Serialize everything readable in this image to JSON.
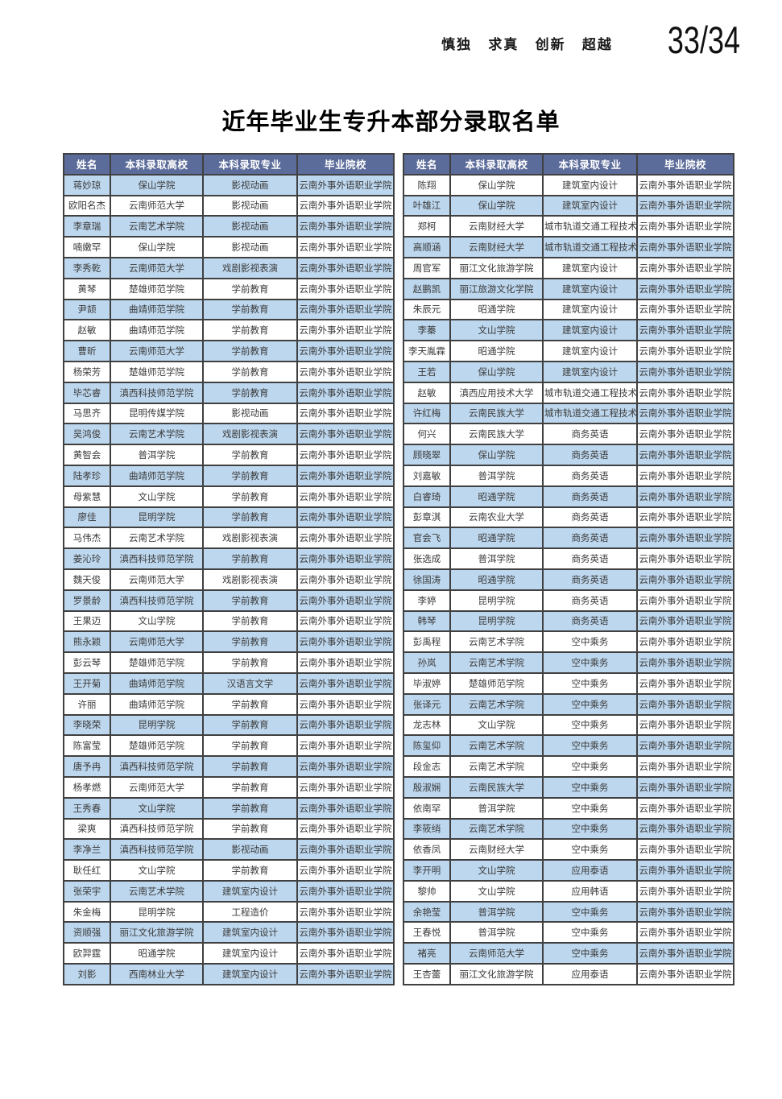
{
  "header": {
    "motto": "慎独 求真 创新 超越",
    "page_number": "33/34"
  },
  "title": "近年毕业生专升本部分录取名单",
  "colors": {
    "header_bg": "#5c6c9a",
    "header_text": "#ffffff",
    "row_alt_bg": "#bdd7ee",
    "row_bg": "#ffffff",
    "border": "#404040",
    "cell_text": "#3b3b3b"
  },
  "tables": [
    {
      "side": "left",
      "headers": [
        "姓名",
        "本科录取高校",
        "本科录取专业",
        "毕业院校"
      ],
      "rows": [
        [
          "蒋妙琼",
          "保山学院",
          "影视动画",
          "云南外事外语职业学院"
        ],
        [
          "欧阳名杰",
          "云南师范大学",
          "影视动画",
          "云南外事外语职业学院"
        ],
        [
          "李章瑞",
          "云南艺术学院",
          "影视动画",
          "云南外事外语职业学院"
        ],
        [
          "喃嫩罕",
          "保山学院",
          "影视动画",
          "云南外事外语职业学院"
        ],
        [
          "李秀乾",
          "云南师范大学",
          "戏剧影视表演",
          "云南外事外语职业学院"
        ],
        [
          "黄琴",
          "楚雄师范学院",
          "学前教育",
          "云南外事外语职业学院"
        ],
        [
          "尹颉",
          "曲靖师范学院",
          "学前教育",
          "云南外事外语职业学院"
        ],
        [
          "赵敏",
          "曲靖师范学院",
          "学前教育",
          "云南外事外语职业学院"
        ],
        [
          "曹昕",
          "云南师范大学",
          "学前教育",
          "云南外事外语职业学院"
        ],
        [
          "杨荣芳",
          "楚雄师范学院",
          "学前教育",
          "云南外事外语职业学院"
        ],
        [
          "毕芯睿",
          "滇西科技师范学院",
          "学前教育",
          "云南外事外语职业学院"
        ],
        [
          "马思齐",
          "昆明传媒学院",
          "影视动画",
          "云南外事外语职业学院"
        ],
        [
          "吴鸿俊",
          "云南艺术学院",
          "戏剧影视表演",
          "云南外事外语职业学院"
        ],
        [
          "黄智会",
          "普洱学院",
          "学前教育",
          "云南外事外语职业学院"
        ],
        [
          "陆孝珍",
          "曲靖师范学院",
          "学前教育",
          "云南外事外语职业学院"
        ],
        [
          "母紫慧",
          "文山学院",
          "学前教育",
          "云南外事外语职业学院"
        ],
        [
          "廖佳",
          "昆明学院",
          "学前教育",
          "云南外事外语职业学院"
        ],
        [
          "马伟杰",
          "云南艺术学院",
          "戏剧影视表演",
          "云南外事外语职业学院"
        ],
        [
          "姜沁玲",
          "滇西科技师范学院",
          "学前教育",
          "云南外事外语职业学院"
        ],
        [
          "魏天俊",
          "云南师范大学",
          "戏剧影视表演",
          "云南外事外语职业学院"
        ],
        [
          "罗景龄",
          "滇西科技师范学院",
          "学前教育",
          "云南外事外语职业学院"
        ],
        [
          "王果迈",
          "文山学院",
          "学前教育",
          "云南外事外语职业学院"
        ],
        [
          "熊永颖",
          "云南师范大学",
          "学前教育",
          "云南外事外语职业学院"
        ],
        [
          "彭云琴",
          "楚雄师范学院",
          "学前教育",
          "云南外事外语职业学院"
        ],
        [
          "王开菊",
          "曲靖师范学院",
          "汉语言文学",
          "云南外事外语职业学院"
        ],
        [
          "许丽",
          "曲靖师范学院",
          "学前教育",
          "云南外事外语职业学院"
        ],
        [
          "李晓荣",
          "昆明学院",
          "学前教育",
          "云南外事外语职业学院"
        ],
        [
          "陈富莹",
          "楚雄师范学院",
          "学前教育",
          "云南外事外语职业学院"
        ],
        [
          "唐予冉",
          "滇西科技师范学院",
          "学前教育",
          "云南外事外语职业学院"
        ],
        [
          "杨孝燃",
          "云南师范大学",
          "学前教育",
          "云南外事外语职业学院"
        ],
        [
          "王秀春",
          "文山学院",
          "学前教育",
          "云南外事外语职业学院"
        ],
        [
          "梁爽",
          "滇西科技师范学院",
          "学前教育",
          "云南外事外语职业学院"
        ],
        [
          "李净兰",
          "滇西科技师范学院",
          "影视动画",
          "云南外事外语职业学院"
        ],
        [
          "耿任红",
          "文山学院",
          "学前教育",
          "云南外事外语职业学院"
        ],
        [
          "张荣宇",
          "云南艺术学院",
          "建筑室内设计",
          "云南外事外语职业学院"
        ],
        [
          "朱金梅",
          "昆明学院",
          "工程造价",
          "云南外事外语职业学院"
        ],
        [
          "资顺强",
          "丽江文化旅游学院",
          "建筑室内设计",
          "云南外事外语职业学院"
        ],
        [
          "欧羿霆",
          "昭通学院",
          "建筑室内设计",
          "云南外事外语职业学院"
        ],
        [
          "刘影",
          "西南林业大学",
          "建筑室内设计",
          "云南外事外语职业学院"
        ]
      ]
    },
    {
      "side": "right",
      "headers": [
        "姓名",
        "本科录取高校",
        "本科录取专业",
        "毕业院校"
      ],
      "rows": [
        [
          "陈翔",
          "保山学院",
          "建筑室内设计",
          "云南外事外语职业学院"
        ],
        [
          "叶雄江",
          "保山学院",
          "建筑室内设计",
          "云南外事外语职业学院"
        ],
        [
          "郑柯",
          "云南财经大学",
          "城市轨道交通工程技术",
          "云南外事外语职业学院"
        ],
        [
          "高顺涵",
          "云南财经大学",
          "城市轨道交通工程技术",
          "云南外事外语职业学院"
        ],
        [
          "周官军",
          "丽江文化旅游学院",
          "建筑室内设计",
          "云南外事外语职业学院"
        ],
        [
          "赵鹏凯",
          "丽江旅游文化学院",
          "建筑室内设计",
          "云南外事外语职业学院"
        ],
        [
          "朱辰元",
          "昭通学院",
          "建筑室内设计",
          "云南外事外语职业学院"
        ],
        [
          "李蓁",
          "文山学院",
          "建筑室内设计",
          "云南外事外语职业学院"
        ],
        [
          "李天胤霖",
          "昭通学院",
          "建筑室内设计",
          "云南外事外语职业学院"
        ],
        [
          "王若",
          "保山学院",
          "建筑室内设计",
          "云南外事外语职业学院"
        ],
        [
          "赵敏",
          "滇西应用技术大学",
          "城市轨道交通工程技术",
          "云南外事外语职业学院"
        ],
        [
          "许红梅",
          "云南民族大学",
          "城市轨道交通工程技术",
          "云南外事外语职业学院"
        ],
        [
          "何兴",
          "云南民族大学",
          "商务英语",
          "云南外事外语职业学院"
        ],
        [
          "顾晓翠",
          "保山学院",
          "商务英语",
          "云南外事外语职业学院"
        ],
        [
          "刘嘉敏",
          "普洱学院",
          "商务英语",
          "云南外事外语职业学院"
        ],
        [
          "白睿琦",
          "昭通学院",
          "商务英语",
          "云南外事外语职业学院"
        ],
        [
          "彭章淇",
          "云南农业大学",
          "商务英语",
          "云南外事外语职业学院"
        ],
        [
          "官会飞",
          "昭通学院",
          "商务英语",
          "云南外事外语职业学院"
        ],
        [
          "张选成",
          "普洱学院",
          "商务英语",
          "云南外事外语职业学院"
        ],
        [
          "徐国涛",
          "昭通学院",
          "商务英语",
          "云南外事外语职业学院"
        ],
        [
          "李婷",
          "昆明学院",
          "商务英语",
          "云南外事外语职业学院"
        ],
        [
          "韩琴",
          "昆明学院",
          "商务英语",
          "云南外事外语职业学院"
        ],
        [
          "彭禹程",
          "云南艺术学院",
          "空中乘务",
          "云南外事外语职业学院"
        ],
        [
          "孙岚",
          "云南艺术学院",
          "空中乘务",
          "云南外事外语职业学院"
        ],
        [
          "毕淑婷",
          "楚雄师范学院",
          "空中乘务",
          "云南外事外语职业学院"
        ],
        [
          "张译元",
          "云南艺术学院",
          "空中乘务",
          "云南外事外语职业学院"
        ],
        [
          "龙志林",
          "文山学院",
          "空中乘务",
          "云南外事外语职业学院"
        ],
        [
          "陈玺仰",
          "云南艺术学院",
          "空中乘务",
          "云南外事外语职业学院"
        ],
        [
          "段金志",
          "云南艺术学院",
          "空中乘务",
          "云南外事外语职业学院"
        ],
        [
          "殷淑娴",
          "云南民族大学",
          "空中乘务",
          "云南外事外语职业学院"
        ],
        [
          "依南罕",
          "普洱学院",
          "空中乘务",
          "云南外事外语职业学院"
        ],
        [
          "李筱绡",
          "云南艺术学院",
          "空中乘务",
          "云南外事外语职业学院"
        ],
        [
          "依香凤",
          "云南财经大学",
          "空中乘务",
          "云南外事外语职业学院"
        ],
        [
          "李开明",
          "文山学院",
          "应用泰语",
          "云南外事外语职业学院"
        ],
        [
          "黎帅",
          "文山学院",
          "应用韩语",
          "云南外事外语职业学院"
        ],
        [
          "余艳莹",
          "普洱学院",
          "空中乘务",
          "云南外事外语职业学院"
        ],
        [
          "王春悦",
          "普洱学院",
          "空中乘务",
          "云南外事外语职业学院"
        ],
        [
          "褚亮",
          "云南师范大学",
          "空中乘务",
          "云南外事外语职业学院"
        ],
        [
          "王杏蕾",
          "丽江文化旅游学院",
          "应用泰语",
          "云南外事外语职业学院"
        ]
      ]
    }
  ]
}
